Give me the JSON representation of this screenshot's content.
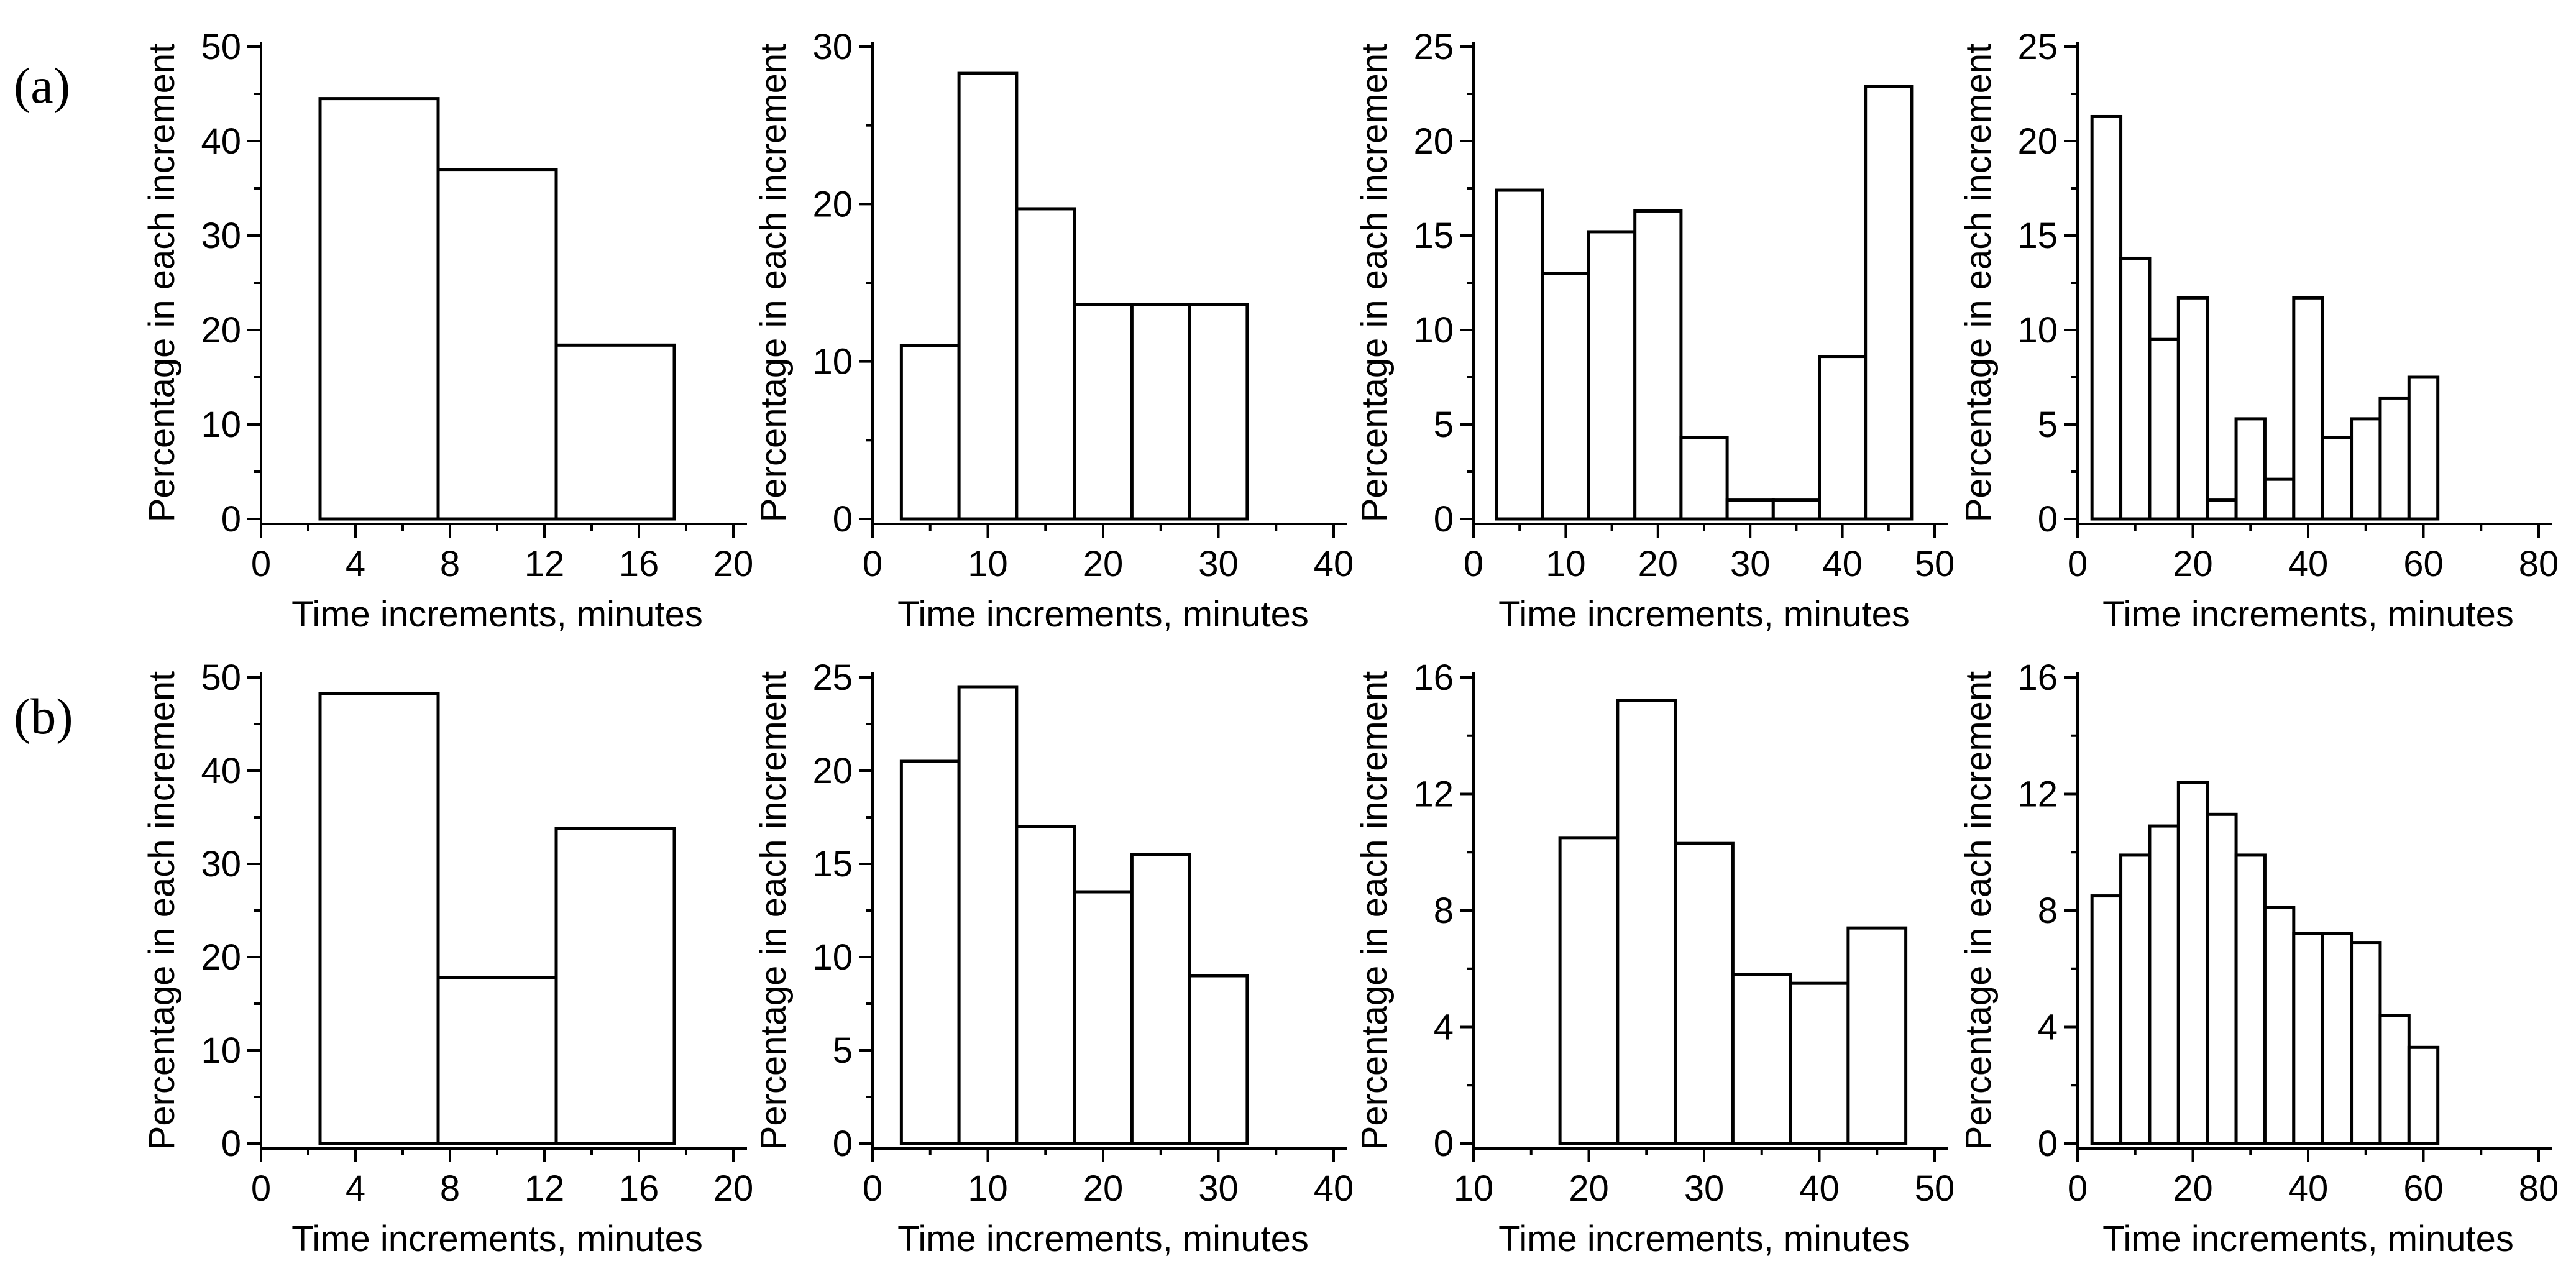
{
  "figure": {
    "panel_labels": [
      "(a)",
      "(b)"
    ],
    "background_color": "#ffffff",
    "axis_color": "#000000",
    "bar_fill_color": "#ffffff",
    "bar_stroke_color": "#000000"
  },
  "chart_data": [
    {
      "id": "a1",
      "panel": "a",
      "col": 0,
      "type": "bar",
      "xlabel": "Time increments, minutes",
      "ylabel": "Percentage in each increment",
      "xlim": [
        0,
        20
      ],
      "ylim": [
        0,
        50
      ],
      "xtick_labels": [
        0,
        4,
        8,
        12,
        16,
        20
      ],
      "ytick_labels": [
        0,
        10,
        20,
        30,
        40,
        50
      ],
      "x_minor": 2,
      "y_minor": 5,
      "bin_start": 2.5,
      "bin_width": 5,
      "values": [
        44.5,
        37.0,
        18.4
      ],
      "grid": false,
      "legend": false
    },
    {
      "id": "a2",
      "panel": "a",
      "col": 1,
      "type": "bar",
      "xlabel": "Time increments, minutes",
      "ylabel": "Percentage in each increment",
      "xlim": [
        0,
        40
      ],
      "ylim": [
        0,
        30
      ],
      "xtick_labels": [
        0,
        10,
        20,
        30,
        40
      ],
      "ytick_labels": [
        0,
        10,
        20,
        30
      ],
      "x_minor": 5,
      "y_minor": 5,
      "bin_start": 2.5,
      "bin_width": 5,
      "values": [
        11.0,
        28.3,
        19.7,
        13.6,
        13.6,
        13.6
      ],
      "grid": false,
      "legend": false
    },
    {
      "id": "a3",
      "panel": "a",
      "col": 2,
      "type": "bar",
      "xlabel": "Time increments, minutes",
      "ylabel": "Percentage in each increment",
      "xlim": [
        0,
        50
      ],
      "ylim": [
        0,
        25
      ],
      "xtick_labels": [
        0,
        10,
        20,
        30,
        40,
        50
      ],
      "ytick_labels": [
        0,
        5,
        10,
        15,
        20,
        25
      ],
      "x_minor": 5,
      "y_minor": 2.5,
      "bin_start": 2.5,
      "bin_width": 5,
      "values": [
        17.4,
        13.0,
        15.2,
        16.3,
        4.3,
        1.0,
        1.0,
        8.6,
        22.9
      ],
      "grid": false,
      "legend": false
    },
    {
      "id": "a4",
      "panel": "a",
      "col": 3,
      "type": "bar",
      "xlabel": "Time increments, minutes",
      "ylabel": "Percentage in each increment",
      "xlim": [
        0,
        80
      ],
      "ylim": [
        0,
        25
      ],
      "xtick_labels": [
        0,
        20,
        40,
        60,
        80
      ],
      "ytick_labels": [
        0,
        5,
        10,
        15,
        20,
        25
      ],
      "x_minor": 10,
      "y_minor": 2.5,
      "bin_start": 2.5,
      "bin_width": 5,
      "values": [
        21.3,
        13.8,
        9.5,
        11.7,
        1.0,
        5.3,
        2.1,
        11.7,
        4.3,
        5.3,
        6.4,
        7.5
      ],
      "grid": false,
      "legend": false
    },
    {
      "id": "b1",
      "panel": "b",
      "col": 0,
      "type": "bar",
      "xlabel": "Time increments, minutes",
      "ylabel": "Percentage in each increment",
      "xlim": [
        0,
        20
      ],
      "ylim": [
        0,
        50
      ],
      "xtick_labels": [
        0,
        4,
        8,
        12,
        16,
        20
      ],
      "ytick_labels": [
        0,
        10,
        20,
        30,
        40,
        50
      ],
      "x_minor": 2,
      "y_minor": 5,
      "bin_start": 2.5,
      "bin_width": 5,
      "values": [
        48.3,
        17.8,
        33.8
      ],
      "grid": false,
      "legend": false
    },
    {
      "id": "b2",
      "panel": "b",
      "col": 1,
      "type": "bar",
      "xlabel": "Time increments, minutes",
      "ylabel": "Percentage in each increment",
      "xlim": [
        0,
        40
      ],
      "ylim": [
        0,
        25
      ],
      "xtick_labels": [
        0,
        10,
        20,
        30,
        40
      ],
      "ytick_labels": [
        0,
        5,
        10,
        15,
        20,
        25
      ],
      "x_minor": 5,
      "y_minor": 2.5,
      "bin_start": 2.5,
      "bin_width": 5,
      "values": [
        20.5,
        24.5,
        17.0,
        13.5,
        15.5,
        9.0
      ],
      "grid": false,
      "legend": false
    },
    {
      "id": "b3",
      "panel": "b",
      "col": 2,
      "type": "bar",
      "xlabel": "Time increments, minutes",
      "ylabel": "Percentage in each increment",
      "xlim": [
        10,
        50
      ],
      "ylim": [
        0,
        16
      ],
      "xtick_labels": [
        10,
        20,
        30,
        40,
        50
      ],
      "ytick_labels": [
        0,
        4,
        8,
        12,
        16
      ],
      "x_minor": 5,
      "y_minor": 2,
      "bin_start": 17.5,
      "bin_width": 5,
      "values": [
        10.5,
        15.2,
        10.3,
        5.8,
        5.5,
        7.4
      ],
      "grid": false,
      "legend": false
    },
    {
      "id": "b4",
      "panel": "b",
      "col": 3,
      "type": "bar",
      "xlabel": "Time increments, minutes",
      "ylabel": "Percentage in each increment",
      "xlim": [
        0,
        80
      ],
      "ylim": [
        0,
        16
      ],
      "xtick_labels": [
        0,
        20,
        40,
        60,
        80
      ],
      "ytick_labels": [
        0,
        4,
        8,
        12,
        16
      ],
      "x_minor": 10,
      "y_minor": 2,
      "bin_start": 2.5,
      "bin_width": 5,
      "values": [
        8.5,
        9.9,
        10.9,
        12.4,
        11.3,
        9.9,
        8.1,
        7.2,
        7.2,
        6.9,
        4.4,
        3.3
      ],
      "grid": false,
      "legend": false
    }
  ]
}
